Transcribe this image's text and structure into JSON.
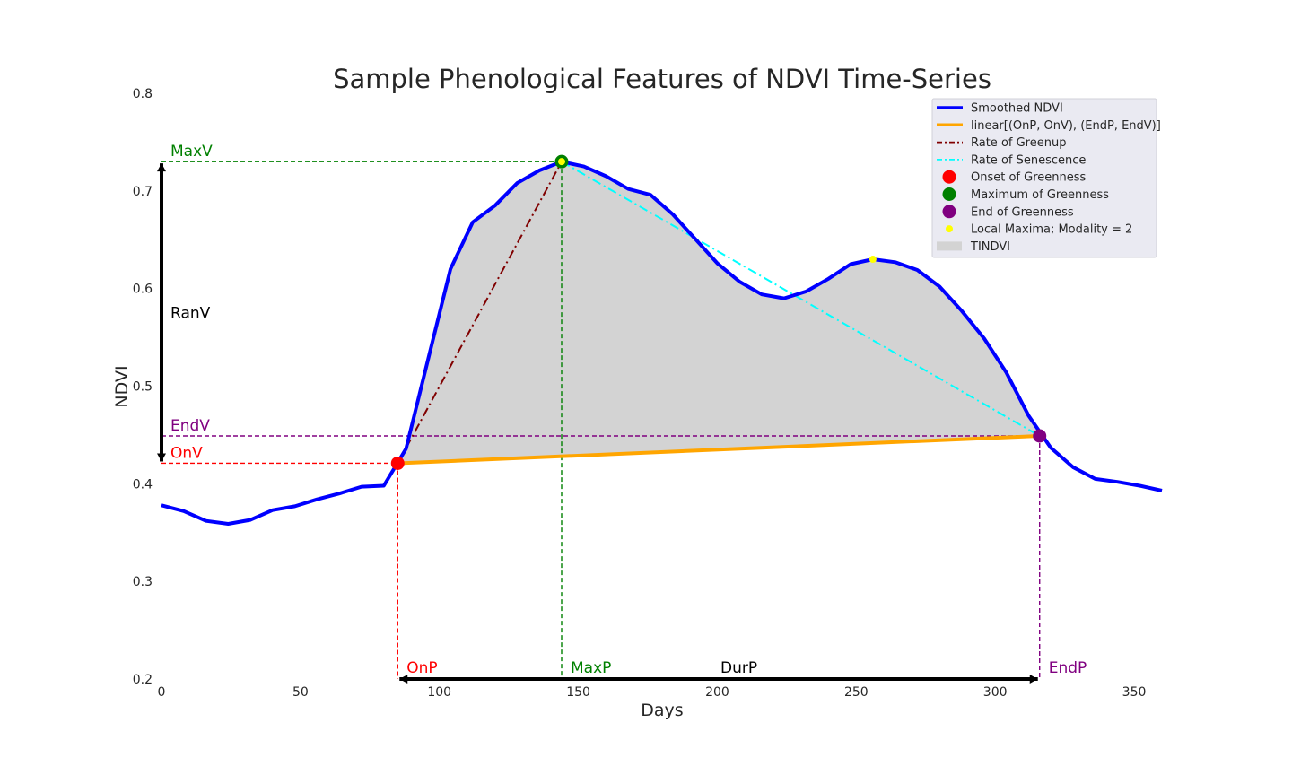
{
  "chart_data": {
    "type": "line",
    "title": "Sample Phenological Features of NDVI Time-Series",
    "xlabel": "Days",
    "ylabel": "NDVI",
    "xlim": [
      0,
      360
    ],
    "ylim": [
      0.2,
      0.8
    ],
    "xticks": [
      0,
      50,
      100,
      150,
      200,
      250,
      300,
      350
    ],
    "yticks": [
      0.2,
      0.3,
      0.4,
      0.5,
      0.6,
      0.7,
      0.8
    ],
    "grid": false,
    "legend_position": "top-right",
    "colors": {
      "ndvi": "#0000ff",
      "linear": "#ffa500",
      "greenup": "#800000",
      "senescence": "#00ffff",
      "onset": "#ff0000",
      "maximum": "#008000",
      "end": "#800080",
      "local_max": "#ffff00",
      "tindvi": "#d3d3d3",
      "legend_bg": "#eaeaf2"
    },
    "series": [
      {
        "name": "Smoothed NDVI",
        "x": [
          0,
          8,
          16,
          24,
          32,
          40,
          48,
          56,
          64,
          72,
          80,
          88,
          96,
          104,
          112,
          120,
          128,
          136,
          144,
          152,
          160,
          168,
          176,
          184,
          192,
          200,
          208,
          216,
          224,
          232,
          240,
          248,
          256,
          264,
          272,
          280,
          288,
          296,
          304,
          312,
          320,
          328,
          336,
          344,
          352,
          360
        ],
        "y": [
          0.378,
          0.372,
          0.362,
          0.359,
          0.363,
          0.373,
          0.377,
          0.384,
          0.39,
          0.397,
          0.398,
          0.436,
          0.528,
          0.62,
          0.668,
          0.685,
          0.708,
          0.721,
          0.73,
          0.725,
          0.715,
          0.702,
          0.696,
          0.676,
          0.651,
          0.626,
          0.607,
          0.594,
          0.59,
          0.597,
          0.61,
          0.625,
          0.63,
          0.627,
          0.619,
          0.602,
          0.577,
          0.549,
          0.514,
          0.47,
          0.437,
          0.417,
          0.405,
          0.402,
          0.398,
          0.393
        ]
      }
    ],
    "linear": {
      "name": "linear[(OnP, OnV), (EndP, EndV)]",
      "x": [
        85,
        316
      ],
      "y": [
        0.421,
        0.449
      ]
    },
    "greenup": {
      "name": "Rate of Greenup",
      "x": [
        85,
        144
      ],
      "y": [
        0.421,
        0.73
      ]
    },
    "senescence": {
      "name": "Rate of Senescence",
      "x": [
        144,
        316
      ],
      "y": [
        0.73,
        0.449
      ]
    },
    "points": {
      "onset": {
        "name": "Onset of Greenness",
        "x": 85,
        "y": 0.421
      },
      "maximum": {
        "name": "Maximum of Greenness",
        "x": 144,
        "y": 0.73
      },
      "end": {
        "name": "End of Greenness",
        "x": 316,
        "y": 0.449
      },
      "local_maxima": {
        "name": "Local Maxima; Modality = 2",
        "x": [
          144,
          256
        ],
        "y": [
          0.73,
          0.63
        ]
      }
    },
    "tindvi": {
      "name": "TINDVI"
    },
    "annotations": {
      "maxv": "MaxV",
      "ranv": "RanV",
      "endv": "EndV",
      "onv": "OnV",
      "onp": "OnP",
      "maxp": "MaxP",
      "durp": "DurP",
      "endp": "EndP"
    }
  }
}
